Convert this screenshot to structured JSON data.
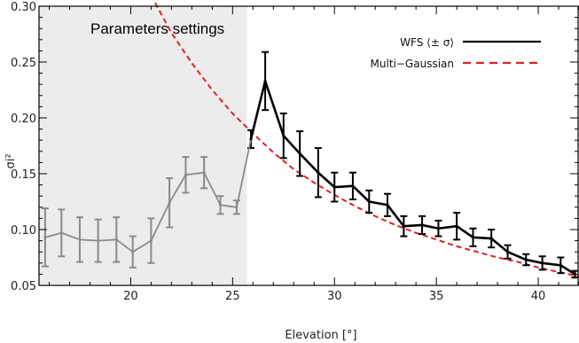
{
  "chart_data": {
    "type": "line",
    "xlabel": "Elevation [°]",
    "ylabel": "σi²",
    "xlim": [
      15.5,
      42
    ],
    "ylim": [
      0.05,
      0.3
    ],
    "x_ticks": [
      20,
      25,
      30,
      35,
      40
    ],
    "x_tick_labels": [
      "20",
      "25",
      "30",
      "35",
      "40"
    ],
    "y_ticks": [
      0.05,
      0.1,
      0.15,
      0.2,
      0.25,
      0.3
    ],
    "y_tick_labels": [
      "0.05",
      "0.10",
      "0.15",
      "0.20",
      "0.25",
      "0.30"
    ],
    "grid": false,
    "legend_position": "top-right",
    "annotation": "Parameters settings",
    "shaded_region": {
      "x_start": 15.5,
      "x_end": 25.7,
      "label": "Parameters settings"
    },
    "series": [
      {
        "name": "WFS ⟨± σ⟩",
        "style": "solid-with-errorbars",
        "color": "#000000",
        "x": [
          15.8,
          16.6,
          17.5,
          18.4,
          19.3,
          20.1,
          21.0,
          21.9,
          22.7,
          23.6,
          24.4,
          25.2,
          25.9,
          26.6,
          27.5,
          28.3,
          29.2,
          30.0,
          30.9,
          31.7,
          32.6,
          33.4,
          34.3,
          35.1,
          36.0,
          36.8,
          37.7,
          38.5,
          39.4,
          40.2,
          41.1,
          41.8
        ],
        "y": [
          0.093,
          0.097,
          0.091,
          0.09,
          0.091,
          0.08,
          0.09,
          0.124,
          0.149,
          0.151,
          0.122,
          0.12,
          0.181,
          0.233,
          0.184,
          0.168,
          0.151,
          0.138,
          0.139,
          0.125,
          0.122,
          0.103,
          0.104,
          0.101,
          0.103,
          0.093,
          0.092,
          0.08,
          0.073,
          0.07,
          0.068,
          0.06
        ],
        "err": [
          0.026,
          0.021,
          0.02,
          0.019,
          0.02,
          0.014,
          0.02,
          0.022,
          0.016,
          0.014,
          0.008,
          0.006,
          0.008,
          0.026,
          0.02,
          0.02,
          0.022,
          0.013,
          0.012,
          0.01,
          0.01,
          0.009,
          0.008,
          0.007,
          0.012,
          0.008,
          0.008,
          0.006,
          0.005,
          0.006,
          0.007,
          0.003
        ]
      },
      {
        "name": "Multi−Gaussian",
        "style": "dashed",
        "color": "#dd2222",
        "x": [
          21.2,
          22.0,
          23.0,
          24.0,
          25.0,
          26.0,
          27.0,
          28.0,
          29.0,
          30.0,
          31.0,
          32.0,
          33.0,
          34.0,
          35.0,
          36.0,
          37.0,
          38.0,
          39.0,
          40.0,
          41.0,
          42.0
        ],
        "y": [
          0.303,
          0.276,
          0.249,
          0.225,
          0.204,
          0.186,
          0.169,
          0.154,
          0.142,
          0.131,
          0.121,
          0.112,
          0.104,
          0.097,
          0.091,
          0.085,
          0.08,
          0.075,
          0.071,
          0.066,
          0.062,
          0.058
        ]
      }
    ]
  }
}
